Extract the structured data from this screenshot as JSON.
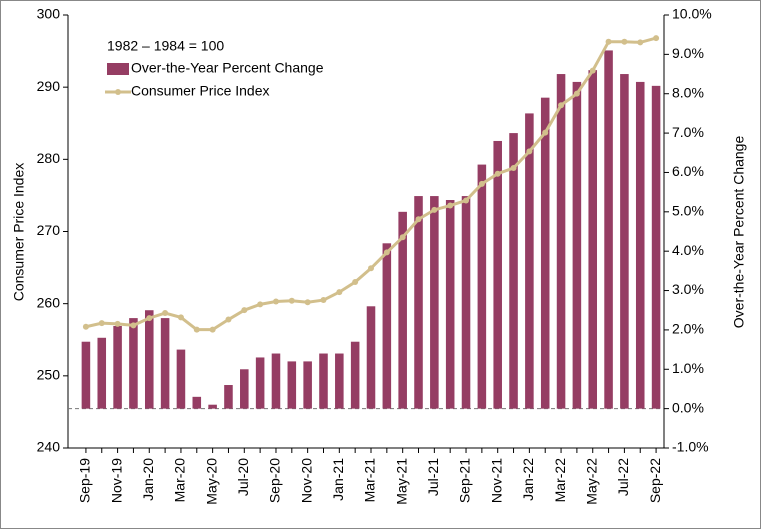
{
  "chart_data": {
    "type": "bar-line",
    "annotation": "1982 – 1984 = 100",
    "ylabel": "Consumer Price Index",
    "y2label": "Over-the-Year Percent Change",
    "categories": [
      "Sep-19",
      null,
      "Nov-19",
      null,
      "Jan-20",
      null,
      "Mar-20",
      null,
      "May-20",
      null,
      "Jul-20",
      null,
      "Sep-20",
      null,
      "Nov-20",
      null,
      "Jan-21",
      null,
      "Mar-21",
      null,
      "May-21",
      null,
      "Jul-21",
      null,
      "Sep-21",
      null,
      "Nov-21",
      null,
      "Jan-22",
      null,
      "Mar-22",
      null,
      "May-22",
      null,
      "Jul-22",
      null,
      "Sep-22"
    ],
    "series": [
      {
        "name": "Over-the-Year Percent Change",
        "kind": "bar",
        "axis": "y2",
        "color": "#953d63",
        "values": [
          1.7,
          1.8,
          2.1,
          2.3,
          2.5,
          2.3,
          1.5,
          0.3,
          0.1,
          0.6,
          1.0,
          1.3,
          1.4,
          1.2,
          1.2,
          1.4,
          1.4,
          1.7,
          2.6,
          4.2,
          5.0,
          5.4,
          5.4,
          5.3,
          5.4,
          6.2,
          6.8,
          7.0,
          7.5,
          7.9,
          8.5,
          8.3,
          8.6,
          9.1,
          8.5,
          8.3,
          8.2
        ]
      },
      {
        "name": "Consumer Price Index",
        "kind": "line",
        "axis": "y",
        "color": "#d2bf8c",
        "values": [
          256.8,
          257.3,
          257.2,
          257.0,
          258.0,
          258.7,
          258.1,
          256.4,
          256.4,
          257.8,
          259.1,
          259.9,
          260.3,
          260.4,
          260.2,
          260.5,
          261.6,
          263.0,
          264.9,
          267.1,
          269.2,
          271.7,
          273.0,
          273.6,
          274.3,
          276.6,
          278.0,
          278.8,
          281.1,
          283.7,
          287.5,
          289.1,
          292.3,
          296.3,
          296.3,
          296.2,
          296.8
        ]
      }
    ],
    "ylim": [
      240,
      300
    ],
    "yticks": [
      240,
      250,
      260,
      270,
      280,
      290,
      300
    ],
    "y2lim": [
      -1,
      10
    ],
    "y2ticks": [
      {
        "value": -1,
        "label": "-1.0%"
      },
      {
        "value": 0,
        "label": "0.0%"
      },
      {
        "value": 1,
        "label": "1.0%"
      },
      {
        "value": 2,
        "label": "2.0%"
      },
      {
        "value": 3,
        "label": "3.0%"
      },
      {
        "value": 4,
        "label": "4.0%"
      },
      {
        "value": 5,
        "label": "5.0%"
      },
      {
        "value": 6,
        "label": "6.0%"
      },
      {
        "value": 7,
        "label": "7.0%"
      },
      {
        "value": 8,
        "label": "8.0%"
      },
      {
        "value": 9,
        "label": "9.0%"
      },
      {
        "value": 10,
        "label": "10.0%"
      }
    ],
    "legend": "upper left"
  }
}
